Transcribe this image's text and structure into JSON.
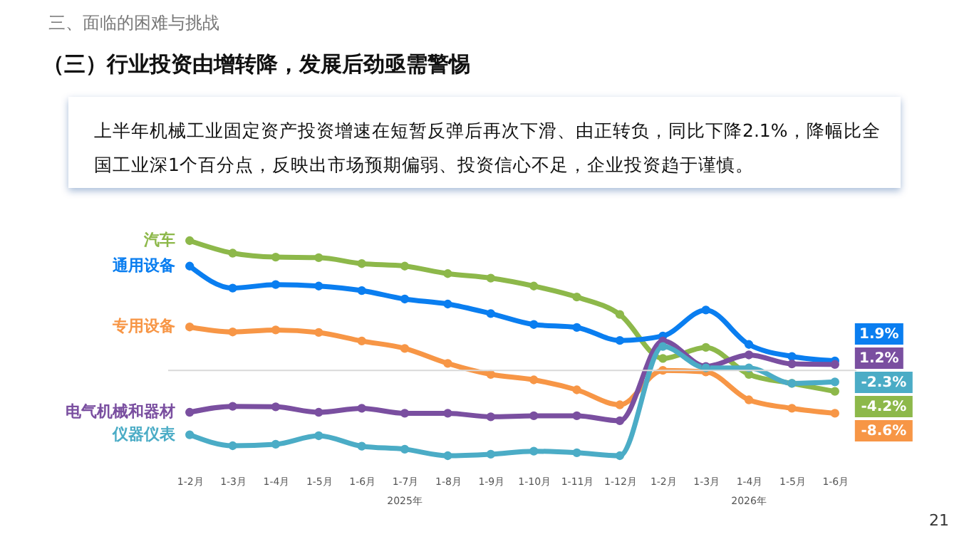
{
  "chart_data": {
    "type": "line",
    "title": "三、面临的困难与挑战",
    "subtitle": "（三）行业投资由增转降，发展后劲亟需警惕",
    "annotations": [
      "上半年机械工业固定资产投资增速在短暂反弹后再次下滑、由正转负，同比下降2.1%，降幅比全国工业深1个百分点，反映出市场预期偏弱、投资信心不足，企业投资趋于谨慎。",
      "2025年",
      "2026年",
      "21"
    ],
    "categories": [
      "1-2月",
      "1-3月",
      "1-4月",
      "1-5月",
      "1-6月",
      "1-7月",
      "1-8月",
      "1-9月",
      "1-10月",
      "1-11月",
      "1-12月",
      "1-2月",
      "1-3月",
      "1-4月",
      "1-5月",
      "1-6月"
    ],
    "series": [
      {
        "name": "汽车",
        "color": "#8db84a",
        "values": [
          26.0,
          23.5,
          22.7,
          22.6,
          21.4,
          20.9,
          19.4,
          18.5,
          16.9,
          14.7,
          11.2,
          2.4,
          4.6,
          -0.8,
          -2.6,
          -4.2
        ],
        "value_labels": [
          null,
          null,
          null,
          null,
          null,
          null,
          null,
          null,
          null,
          null,
          null,
          null,
          null,
          null,
          null,
          "-4.2%"
        ]
      },
      {
        "name": "通用设备",
        "color": "#0a7ef0",
        "values": [
          20.9,
          16.5,
          17.2,
          16.9,
          16.0,
          14.3,
          13.3,
          11.4,
          9.2,
          8.6,
          6.0,
          6.9,
          12.1,
          5.2,
          2.8,
          1.9
        ],
        "value_labels": [
          null,
          null,
          null,
          null,
          null,
          null,
          null,
          null,
          null,
          null,
          null,
          null,
          null,
          null,
          null,
          "1.9%"
        ]
      },
      {
        "name": "专用设备",
        "color": "#f79646",
        "values": [
          8.7,
          7.7,
          8.1,
          7.6,
          5.9,
          4.4,
          1.4,
          -0.8,
          -1.9,
          -3.9,
          -6.9,
          0.0,
          -0.3,
          -5.9,
          -7.6,
          -8.6
        ],
        "value_labels": [
          null,
          null,
          null,
          null,
          null,
          null,
          null,
          null,
          null,
          null,
          null,
          null,
          null,
          null,
          null,
          "-8.6%"
        ]
      },
      {
        "name": "电气机械和器材",
        "color": "#7a4fa0",
        "values": [
          -8.4,
          -7.2,
          -7.3,
          -8.4,
          -7.6,
          -8.6,
          -8.6,
          -9.3,
          -9.1,
          -9.1,
          -10.1,
          5.9,
          0.8,
          3.1,
          1.3,
          1.2
        ],
        "value_labels": [
          null,
          null,
          null,
          null,
          null,
          null,
          null,
          null,
          null,
          null,
          null,
          null,
          null,
          null,
          null,
          "1.2%"
        ]
      },
      {
        "name": "仪器仪表",
        "color": "#4bacc6",
        "values": [
          -12.9,
          -15.1,
          -14.8,
          -13.1,
          -15.2,
          -15.8,
          -17.1,
          -16.8,
          -16.2,
          -16.5,
          -17.1,
          4.8,
          0.5,
          0.5,
          -2.6,
          -2.3
        ],
        "value_labels": [
          null,
          null,
          null,
          null,
          null,
          null,
          null,
          null,
          null,
          null,
          null,
          null,
          null,
          null,
          null,
          "-2.3%"
        ]
      }
    ],
    "tick_labels": "x",
    "marker": "circle",
    "line_style": "solid"
  }
}
